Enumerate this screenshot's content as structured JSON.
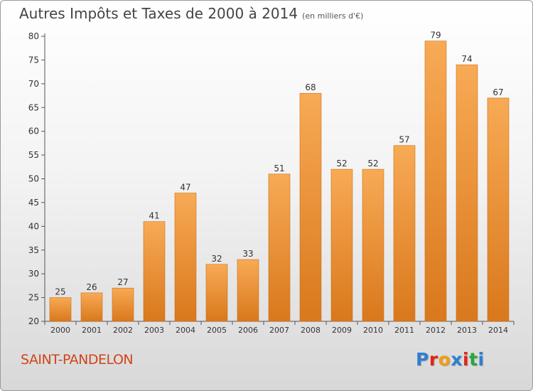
{
  "header": {
    "title": "Autres Impôts et Taxes de 2000 à 2014",
    "subtitle": "(en milliers d'€)"
  },
  "footer": {
    "commune": "SAINT-PANDELON",
    "logo_letters": [
      "P",
      "r",
      "o",
      "x",
      "i",
      "t",
      "i"
    ],
    "logo_colors": [
      "#2e7fd0",
      "#e2231a",
      "#f39c12",
      "#2e7fd0",
      "#e2231a",
      "#27a83a",
      "#2e7fd0"
    ]
  },
  "colors": {
    "bar_light": "#f8aa55",
    "bar_dark": "#d9781c",
    "axis": "#555555",
    "grid": "#cfcfcf",
    "commune": "#d0451b"
  },
  "chart_data": {
    "type": "bar",
    "title": "Autres Impôts et Taxes de 2000 à 2014",
    "subtitle": "(en milliers d'€)",
    "xlabel": "",
    "ylabel": "",
    "categories": [
      "2000",
      "2001",
      "2002",
      "2003",
      "2004",
      "2005",
      "2006",
      "2007",
      "2008",
      "2009",
      "2010",
      "2011",
      "2012",
      "2013",
      "2014"
    ],
    "values": [
      25,
      26,
      27,
      41,
      47,
      32,
      33,
      51,
      68,
      52,
      52,
      57,
      79,
      74,
      67
    ],
    "ylim": [
      20,
      80
    ],
    "yticks": [
      20,
      25,
      30,
      35,
      40,
      45,
      50,
      55,
      60,
      65,
      70,
      75,
      80
    ],
    "grid": false,
    "legend": "none"
  }
}
